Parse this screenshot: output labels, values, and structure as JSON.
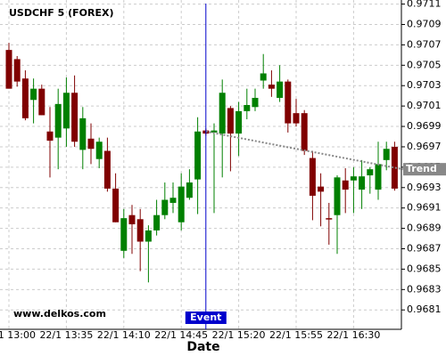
{
  "chart_data": {
    "type": "candlestick",
    "title": "USDCHF 5 (FOREX)",
    "watermark": "www.delkos.com",
    "x_label": "Date",
    "categories": [
      "22/1 13:00",
      null,
      null,
      null,
      null,
      null,
      null,
      "22/1 13:35",
      null,
      null,
      null,
      null,
      null,
      null,
      "22/1 14:10",
      null,
      null,
      null,
      null,
      null,
      null,
      "22/1 14:45",
      null,
      null,
      null,
      null,
      null,
      null,
      "22/1 15:20",
      null,
      null,
      null,
      null,
      null,
      null,
      "22/1 15:55",
      null,
      null,
      null,
      null,
      null,
      null,
      "22/1 16:30",
      null,
      null,
      null,
      null,
      null
    ],
    "open": [
      0.97065,
      0.97056,
      0.97037,
      0.97016,
      0.97027,
      0.96985,
      0.96979,
      0.96988,
      0.97023,
      0.96967,
      0.96978,
      0.96958,
      0.96966,
      0.96929,
      0.96868,
      0.96903,
      0.96899,
      0.96877,
      0.96888,
      0.96903,
      0.96915,
      0.96896,
      0.9692,
      0.96938,
      0.96986,
      0.96984,
      0.96983,
      0.97008,
      0.96983,
      0.97005,
      0.97009,
      0.97035,
      0.97031,
      0.97018,
      0.97034,
      0.97003,
      0.97003,
      0.96959,
      0.96931,
      0.969,
      0.96903,
      0.96937,
      0.96937,
      0.96928,
      0.96942,
      0.96928,
      0.96957,
      0.9697
    ],
    "high": [
      0.97072,
      0.97059,
      0.97045,
      0.97037,
      0.97031,
      0.97009,
      0.97027,
      0.97038,
      0.9704,
      0.97009,
      0.96993,
      0.96979,
      0.96979,
      0.96944,
      0.96909,
      0.96913,
      0.96909,
      0.96893,
      0.96918,
      0.96935,
      0.96935,
      0.96944,
      0.96948,
      0.96999,
      0.96988,
      0.96993,
      0.97036,
      0.9701,
      0.97014,
      0.97027,
      0.97027,
      0.97061,
      0.97045,
      0.9705,
      0.97036,
      0.97017,
      0.97006,
      0.96966,
      0.96944,
      0.96915,
      0.96942,
      0.96949,
      0.9695,
      0.96957,
      0.9695,
      0.96975,
      0.96975,
      0.96975
    ],
    "low": [
      0.97027,
      0.97029,
      0.96996,
      0.96993,
      0.97001,
      0.9694,
      0.96948,
      0.9697,
      0.9697,
      0.96948,
      0.96953,
      0.96949,
      0.96926,
      0.96896,
      0.96861,
      0.96865,
      0.96848,
      0.96837,
      0.96883,
      0.96899,
      0.96905,
      0.96888,
      0.96918,
      0.96904,
      0.96981,
      0.96905,
      0.9694,
      0.96946,
      0.96961,
      0.96997,
      0.97005,
      0.97027,
      0.97019,
      0.97014,
      0.96984,
      0.9699,
      0.96962,
      0.96898,
      0.96892,
      0.96874,
      0.96865,
      0.96905,
      0.96905,
      0.96909,
      0.96924,
      0.96918,
      0.96947,
      0.96927
    ],
    "close": [
      0.97027,
      0.97034,
      0.96998,
      0.97027,
      0.97001,
      0.96976,
      0.97012,
      0.97023,
      0.96975,
      0.96998,
      0.96968,
      0.96975,
      0.96929,
      0.96896,
      0.969,
      0.96894,
      0.96877,
      0.96888,
      0.96903,
      0.96918,
      0.9692,
      0.96931,
      0.96935,
      0.96985,
      0.96983,
      0.96986,
      0.97023,
      0.96983,
      0.97005,
      0.97011,
      0.97018,
      0.97042,
      0.97027,
      0.97034,
      0.96993,
      0.96993,
      0.96966,
      0.96922,
      0.96926,
      0.96899,
      0.9694,
      0.96928,
      0.96941,
      0.96941,
      0.96948,
      0.96953,
      0.96968,
      0.96929
    ],
    "up_color": "#008000",
    "down_color": "#800000",
    "ylim": [
      0.96791,
      0.97114
    ],
    "yticks": [
      0.9711,
      0.9709,
      0.9707,
      0.9705,
      0.9703,
      0.9701,
      0.9699,
      0.9697,
      0.9695,
      0.9693,
      0.9691,
      0.9689,
      0.9687,
      0.9685,
      0.9683,
      0.9681
    ],
    "grid": true,
    "event": {
      "label": "Event",
      "index": 24,
      "color": "#0000cc"
    },
    "trend": {
      "label": "Trend",
      "start_index": 24,
      "start_value": 0.96985,
      "end_index": 48,
      "end_value": 0.96948,
      "color": "#888888"
    }
  }
}
